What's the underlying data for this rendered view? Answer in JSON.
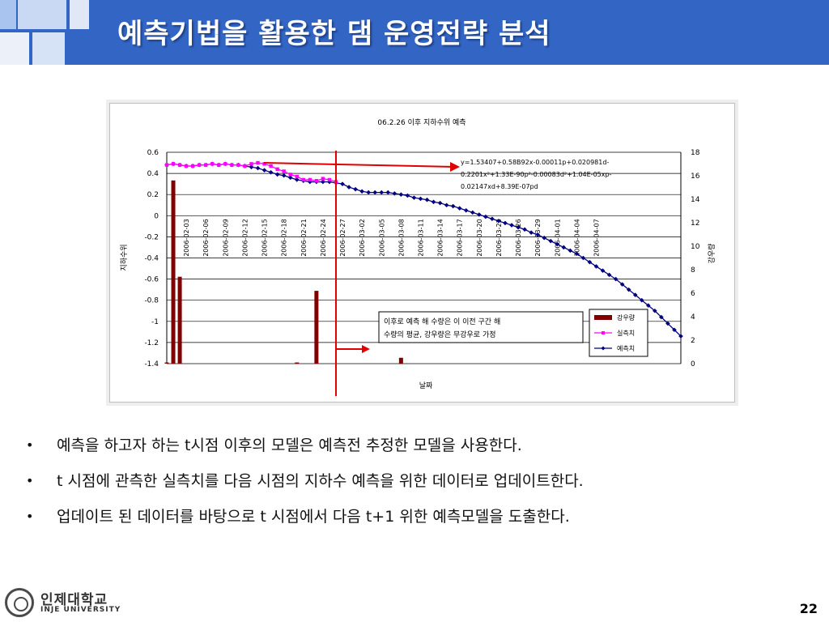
{
  "slide": {
    "title": "예측기법을 활용한 댐 운영전략 분석",
    "page_number": "22"
  },
  "bullets": [
    "예측을 하고자 하는 t시점 이후의 모델은 예측전 추정한 모델을 사용한다.",
    "t 시점에 관측한 실측치를 다음 시점의 지하수 예측을 위한 데이터로 업데이트한다.",
    "업데이트 된 데이터를 바탕으로 t 시점에서 다음 t+1 위한 예측모델을 도출한다."
  ],
  "bullet_symbol": "•",
  "logo": {
    "name": "인제대학교",
    "sub": "INJE UNIVERSITY"
  },
  "colors": {
    "header": "#3366c4",
    "rain": "#800000",
    "observed": "#ff00ff",
    "predicted": "#000080",
    "marker_line": "#e00000"
  },
  "chart_data": {
    "type": "bar+line",
    "title": "06.2.26 이후 지하수위 예측",
    "xlabel": "날짜",
    "ylabel_left": "지하수위",
    "ylabel_right": "강우량",
    "ylim_left": [
      -1.4,
      0.6
    ],
    "ylim_right": [
      0,
      18
    ],
    "left_ticks": [
      "0.6",
      "0.4",
      "0.2",
      "0",
      "-0.2",
      "-0.4",
      "-0.6",
      "-0.8",
      "-1",
      "-1.2",
      "-1.4"
    ],
    "right_ticks": [
      "18",
      "16",
      "14",
      "12",
      "10",
      "8",
      "6",
      "4",
      "2",
      "0"
    ],
    "date_labels": [
      "2006-02-03",
      "2006-02-06",
      "2006-02-09",
      "2006-02-12",
      "2006-02-15",
      "2006-02-18",
      "2006-02-21",
      "2006-02-24",
      "2006-02-27",
      "2006-03-02",
      "2006-03-05",
      "2006-03-08",
      "2006-03-11",
      "2006-03-14",
      "2006-03-17",
      "2006-03-20",
      "2006-03-23",
      "2006-03-26",
      "2006-03-29",
      "2006-04-01",
      "2006-04-04",
      "2006-04-07"
    ],
    "x_start": "2006-01-31",
    "grid": true,
    "legend_position": "bottom-right",
    "series": [
      {
        "name": "강우량",
        "axis": "right",
        "kind": "bar",
        "color": "#800000",
        "points": [
          [
            0,
            0.1
          ],
          [
            1,
            15.6
          ],
          [
            2,
            7.4
          ],
          [
            20,
            0.1
          ],
          [
            23,
            6.2
          ],
          [
            36,
            0.5
          ]
        ]
      },
      {
        "name": "실측치",
        "axis": "left",
        "kind": "line",
        "color": "#ff00ff",
        "values": [
          0.48,
          0.49,
          0.48,
          0.47,
          0.47,
          0.48,
          0.48,
          0.49,
          0.48,
          0.49,
          0.48,
          0.48,
          0.47,
          0.49,
          0.5,
          0.49,
          0.47,
          0.44,
          0.42,
          0.39,
          0.37,
          0.34,
          0.34,
          0.33,
          0.35,
          0.34,
          0.32
        ]
      },
      {
        "name": "예측치",
        "axis": "left",
        "kind": "line",
        "color": "#000080",
        "values": [
          0.48,
          0.49,
          0.48,
          0.47,
          0.47,
          0.48,
          0.48,
          0.49,
          0.48,
          0.49,
          0.48,
          0.48,
          0.47,
          0.46,
          0.45,
          0.43,
          0.41,
          0.39,
          0.38,
          0.36,
          0.34,
          0.33,
          0.32,
          0.32,
          0.32,
          0.32,
          0.31,
          0.3,
          0.27,
          0.25,
          0.23,
          0.22,
          0.22,
          0.22,
          0.22,
          0.21,
          0.2,
          0.19,
          0.17,
          0.16,
          0.15,
          0.13,
          0.12,
          0.1,
          0.09,
          0.07,
          0.05,
          0.03,
          0.01,
          -0.01,
          -0.03,
          -0.05,
          -0.07,
          -0.09,
          -0.11,
          -0.13,
          -0.16,
          -0.18,
          -0.21,
          -0.24,
          -0.27,
          -0.3,
          -0.33,
          -0.36,
          -0.4,
          -0.44,
          -0.48,
          -0.52,
          -0.56,
          -0.6,
          -0.65,
          -0.7,
          -0.75,
          -0.8,
          -0.85,
          -0.9,
          -0.96,
          -1.02,
          -1.08,
          -1.14
        ]
      }
    ],
    "t_marker_index": 26,
    "equation": [
      "y=1.53407+0.58B92x-0.00011p+0.020981d-",
      "0.2201x²+1.33E-90p²-0.00083d²+1.04E-05xp-",
      "0.02147xd+8.39E-07pd"
    ],
    "annotation": [
      "이후로 예측 해 수량은 이 이전 구간 해",
      "수량의 평균, 강우량은 무강우로 가정"
    ]
  }
}
